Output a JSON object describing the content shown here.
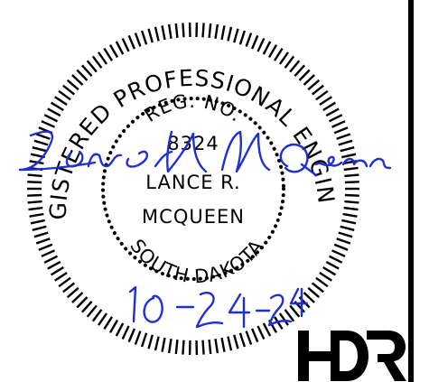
{
  "seal": {
    "outer_arc_text": "REGISTERED PROFESSIONAL ENGINEER",
    "inner_top_text": "REG. NO.",
    "reg_number": "8324",
    "name_line1": "LANCE R.",
    "name_line2": "MCQUEEN",
    "inner_bottom_text": "SOUTH DAKOTA",
    "ink_color": "#000000"
  },
  "signature": {
    "name": "Lance R. McQueen",
    "date": "10-24-24",
    "ink_color": "#1f2fd6"
  },
  "logo": {
    "text": "HDR",
    "color": "#000000"
  },
  "right_border": {
    "color": "#000000"
  }
}
